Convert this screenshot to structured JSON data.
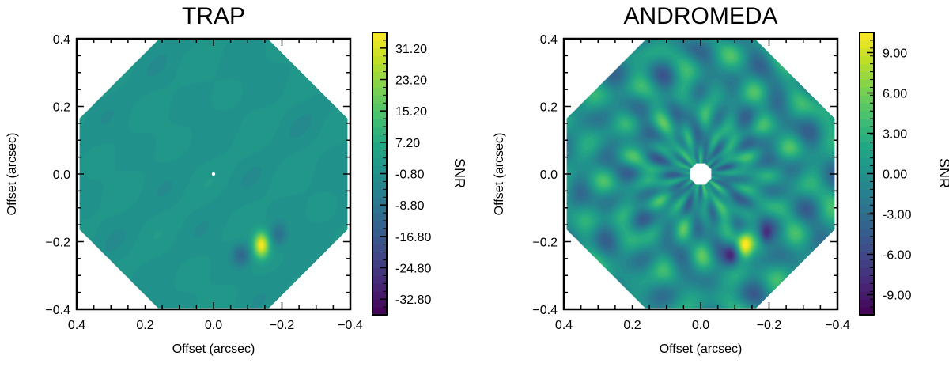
{
  "chart_data": [
    {
      "type": "heatmap",
      "title": "TRAP",
      "xlabel": "Offset (arcsec)",
      "ylabel": "Offset (arcsec)",
      "xlim": [
        0.4,
        -0.4
      ],
      "ylim": [
        -0.4,
        0.4
      ],
      "x_ticks": [
        0.4,
        0.2,
        0.0,
        -0.2,
        -0.4
      ],
      "y_ticks": [
        0.4,
        0.2,
        0.0,
        -0.2,
        -0.4
      ],
      "x_tick_labels": [
        "0.4",
        "0.2",
        "0.0",
        "−0.2",
        "−0.4"
      ],
      "y_tick_labels": [
        "0.4",
        "0.2",
        "0.0",
        "−0.2",
        "−0.4"
      ],
      "colorbar_label": "SNR",
      "colorbar_range": [
        -36.8,
        35.2
      ],
      "colorbar_ticks": [
        31.2,
        23.2,
        15.2,
        7.2,
        -0.8,
        -8.8,
        -16.8,
        -24.8,
        -32.8
      ],
      "colorbar_tick_labels": [
        "31.20",
        "23.20",
        "15.20",
        "7.20",
        "-0.80",
        "-8.80",
        "-16.80",
        "-24.80",
        "-32.80"
      ],
      "colormap": "viridis",
      "field_radius_arcsec": 0.4,
      "inner_mask_radius_arcsec": 0.005,
      "background_level": 0,
      "features": [
        {
          "name": "companion",
          "x": -0.14,
          "y": -0.21,
          "snr": 34
        },
        {
          "name": "negative-lobe-left",
          "x": -0.08,
          "y": -0.24,
          "snr": -12
        },
        {
          "name": "negative-lobe-right",
          "x": -0.19,
          "y": -0.18,
          "snr": -10
        }
      ]
    },
    {
      "type": "heatmap",
      "title": "ANDROMEDA",
      "xlabel": "Offset (arcsec)",
      "ylabel": "Offset (arcsec)",
      "xlim": [
        0.4,
        -0.4
      ],
      "ylim": [
        -0.4,
        0.4
      ],
      "x_ticks": [
        0.4,
        0.2,
        0.0,
        -0.2,
        -0.4
      ],
      "y_ticks": [
        0.4,
        0.2,
        0.0,
        -0.2,
        -0.4
      ],
      "x_tick_labels": [
        "0.4",
        "0.2",
        "0.0",
        "−0.2",
        "−0.4"
      ],
      "y_tick_labels": [
        "0.4",
        "0.2",
        "0.0",
        "−0.2",
        "−0.4"
      ],
      "colorbar_label": "SNR",
      "colorbar_range": [
        -10.5,
        10.5
      ],
      "colorbar_ticks": [
        9.0,
        6.0,
        3.0,
        0.0,
        -3.0,
        -6.0,
        -9.0
      ],
      "colorbar_tick_labels": [
        "9.00",
        "6.00",
        "3.00",
        "0.00",
        "-3.00",
        "-6.00",
        "-9.00"
      ],
      "colormap": "viridis",
      "field_radius_arcsec": 0.4,
      "inner_mask_radius_arcsec": 0.032,
      "background_level": 0,
      "features": [
        {
          "name": "companion",
          "x": -0.13,
          "y": -0.21,
          "snr": 9
        },
        {
          "name": "negative-lobe-left",
          "x": -0.09,
          "y": -0.24,
          "snr": -6
        },
        {
          "name": "negative-lobe-right",
          "x": -0.19,
          "y": -0.18,
          "snr": -6
        }
      ]
    }
  ]
}
